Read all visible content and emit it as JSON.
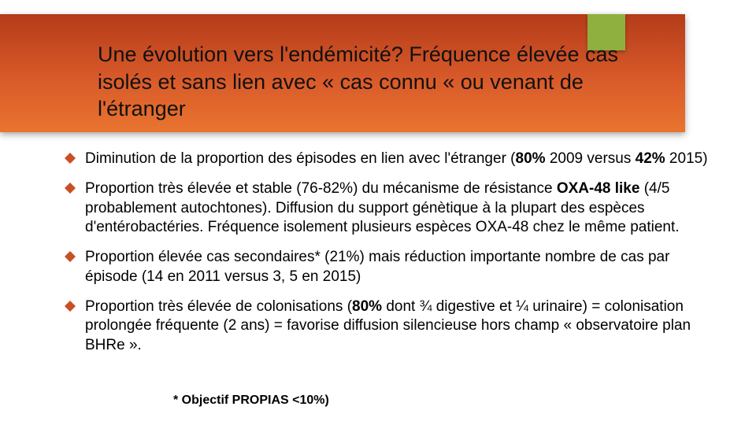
{
  "accent_color": "#8fb03e",
  "bullet_color": "#c94f24",
  "title": "Une évolution vers l'endémicité? Fréquence élevée cas isolés et sans lien avec « cas connu « ou venant de l'étranger",
  "bullets": [
    {
      "html": "Diminution de la proportion des épisodes en lien avec l'étranger (<b>80%</b> 2009 versus <b>42%</b> 2015)"
    },
    {
      "html": "Proportion très élevée et stable (76-82%) du mécanisme de résistance <b>OXA-48 like</b> (4/5 probablement autochtones). Diffusion du support génètique à la plupart des espèces d'entérobactéries. Fréquence isolement plusieurs espèces OXA-48 chez le même patient."
    },
    {
      "html": "Proportion élevée cas secondaires* (21%) mais réduction importante nombre de cas par épisode (14 en 2011 versus 3, 5 en 2015)"
    },
    {
      "html": "Proportion très élevée de colonisations (<b>80%</b> dont ¾ digestive et ¼ urinaire) = colonisation prolongée fréquente (2 ans) = favorise diffusion silencieuse hors champ « observatoire plan BHRe »."
    }
  ],
  "footnote": "* Objectif PROPIAS <10%)"
}
